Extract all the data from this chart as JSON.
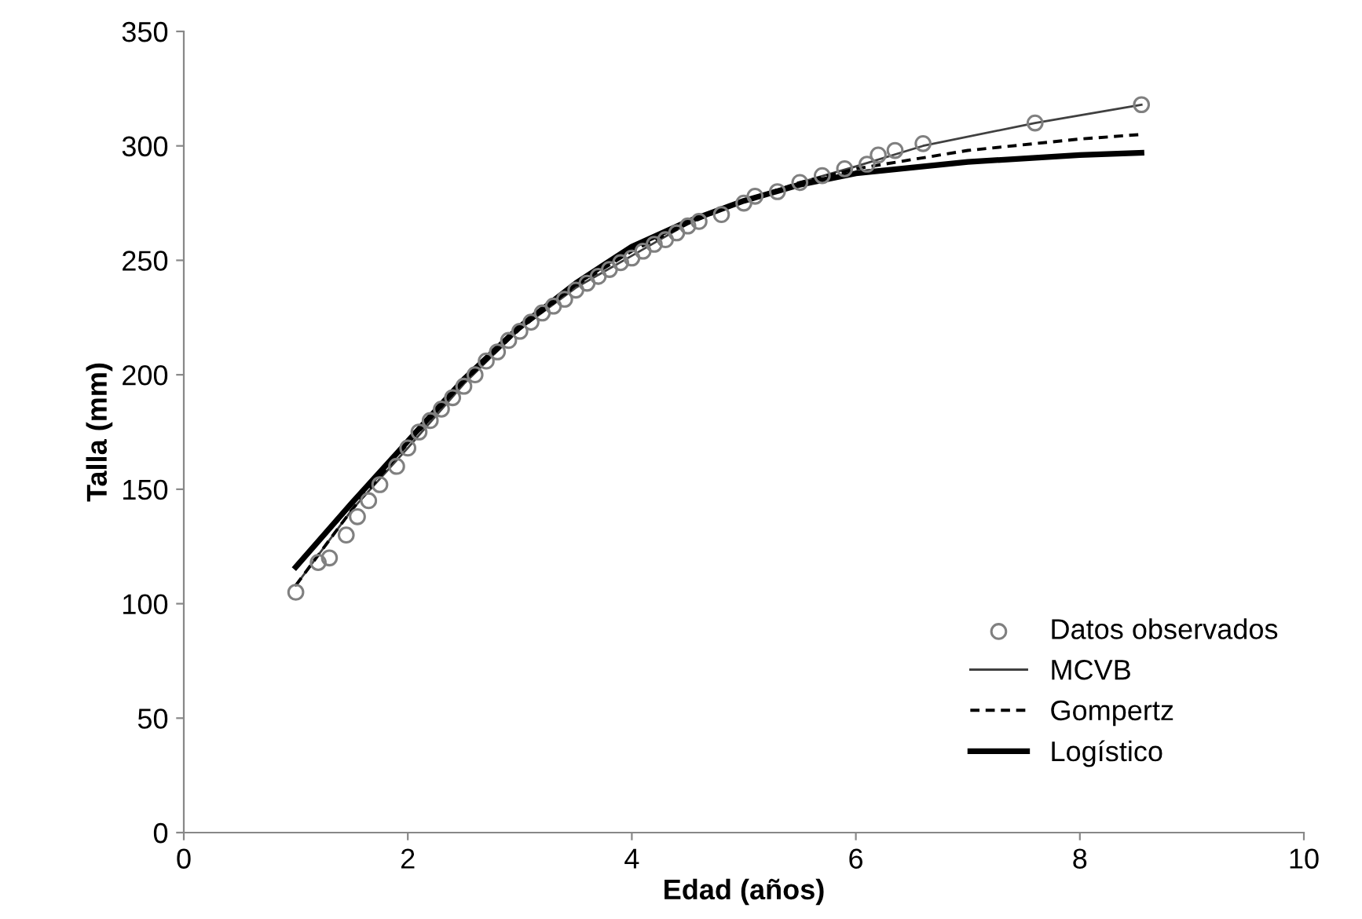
{
  "chart_data": {
    "type": "line",
    "xlabel": "Edad (años)",
    "ylabel": "Talla (mm)",
    "xlim": [
      0,
      10
    ],
    "ylim": [
      0,
      350
    ],
    "xticks": [
      0,
      2,
      4,
      6,
      8,
      10
    ],
    "yticks": [
      0,
      50,
      100,
      150,
      200,
      250,
      300,
      350
    ],
    "grid": false,
    "legend": "bottom right",
    "series": [
      {
        "name": "Datos observados",
        "type": "scatter",
        "marker": "circle",
        "color": "#808080",
        "x": [
          1.0,
          1.2,
          1.3,
          1.45,
          1.55,
          1.65,
          1.75,
          1.9,
          2.0,
          2.1,
          2.2,
          2.3,
          2.4,
          2.5,
          2.6,
          2.7,
          2.8,
          2.9,
          3.0,
          3.1,
          3.2,
          3.3,
          3.4,
          3.5,
          3.6,
          3.7,
          3.8,
          3.9,
          4.0,
          4.1,
          4.2,
          4.3,
          4.4,
          4.5,
          4.6,
          4.8,
          5.0,
          5.1,
          5.3,
          5.5,
          5.7,
          5.9,
          6.1,
          6.2,
          6.35,
          6.6,
          7.6,
          8.55
        ],
        "values": [
          105,
          118,
          120,
          130,
          138,
          145,
          152,
          160,
          168,
          175,
          180,
          185,
          190,
          195,
          200,
          206,
          210,
          215,
          219,
          223,
          227,
          230,
          233,
          237,
          240,
          243,
          246,
          249,
          251,
          254,
          257,
          259,
          262,
          265,
          267,
          270,
          275,
          278,
          280,
          284,
          287,
          290,
          292,
          296,
          298,
          301,
          310,
          318
        ]
      },
      {
        "name": "MCVB",
        "line_style": "solid",
        "color": "#404040",
        "x": [
          1.0,
          1.5,
          2,
          2.5,
          3,
          3.5,
          4,
          4.5,
          5,
          5.5,
          6,
          6.6,
          7.6,
          8.55
        ],
        "values": [
          108,
          141,
          168,
          196,
          220,
          238,
          252,
          266,
          276,
          284,
          291,
          300,
          310,
          318
        ]
      },
      {
        "name": "Gompertz",
        "line_style": "dashed",
        "color": "#000000",
        "x": [
          1.0,
          1.5,
          2,
          2.5,
          3,
          3.5,
          4,
          4.5,
          5,
          5.5,
          6,
          7,
          8,
          8.55
        ],
        "values": [
          108,
          141,
          170,
          197,
          220,
          239,
          254,
          266,
          276,
          284,
          290,
          298,
          303,
          305
        ]
      },
      {
        "name": "Logístico",
        "line_style": "solid",
        "color": "#000000",
        "x": [
          1.0,
          1.5,
          2,
          2.5,
          3,
          3.5,
          4,
          4.5,
          5,
          5.5,
          6,
          7,
          8,
          8.55
        ],
        "values": [
          116,
          144,
          171,
          198,
          221,
          240,
          256,
          267,
          276,
          283,
          288,
          293,
          296,
          297
        ]
      }
    ]
  }
}
